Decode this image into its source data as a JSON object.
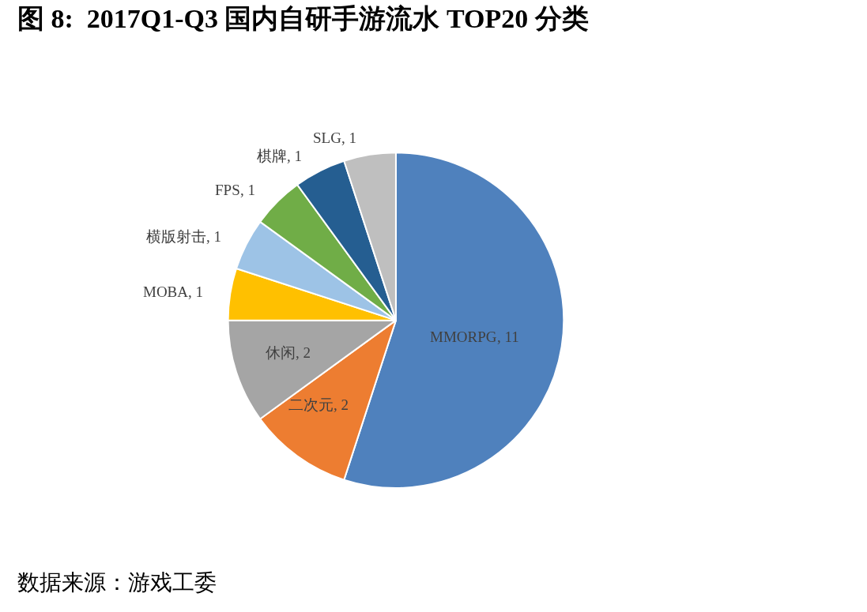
{
  "chart_data": {
    "type": "pie",
    "title": "图 8:  2017Q1-Q3 国内自研手游流水 TOP20 分类",
    "categories": [
      "MMORPG",
      "二次元",
      "休闲",
      "MOBA",
      "横版射击",
      "FPS",
      "棋牌",
      "SLG"
    ],
    "values": [
      11,
      2,
      2,
      1,
      1,
      1,
      1,
      1
    ],
    "colors": [
      "#4f81bd",
      "#ed7d31",
      "#a5a5a5",
      "#ffc000",
      "#9dc3e6",
      "#70ad47",
      "#255e91",
      "#bfbfbf"
    ],
    "value_labels": [
      ", 11",
      ", 2",
      ", 2",
      ", 1",
      ", 1",
      ", 1",
      ", 1",
      ", 1"
    ],
    "legend": false,
    "annotations": [
      "数据来源：游戏工委"
    ]
  }
}
